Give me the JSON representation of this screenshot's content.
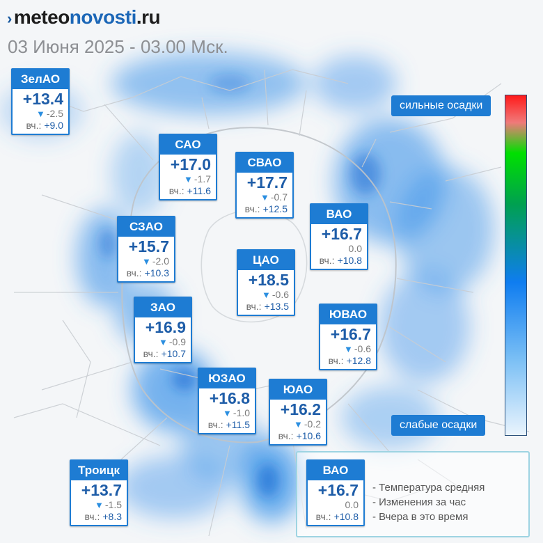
{
  "header": {
    "logo": {
      "prefix": "›",
      "part1": "meteo",
      "part2": "novosti",
      "part3": ".ru"
    },
    "datetime": "03 Июня 2025 - 03.00 Мск."
  },
  "labels": {
    "yesterday": "вч.:"
  },
  "districts": [
    {
      "id": "zelao",
      "name": "ЗелАО",
      "temp": "+13.4",
      "change": "-2.5",
      "yesterday": "+9.0"
    },
    {
      "id": "sao",
      "name": "САО",
      "temp": "+17.0",
      "change": "-1.7",
      "yesterday": "+11.6"
    },
    {
      "id": "svao",
      "name": "СВАО",
      "temp": "+17.7",
      "change": "-0.7",
      "yesterday": "+12.5"
    },
    {
      "id": "vao",
      "name": "ВАО",
      "temp": "+16.7",
      "change": "0.0",
      "yesterday": "+10.8"
    },
    {
      "id": "szao",
      "name": "СЗАО",
      "temp": "+15.7",
      "change": "-2.0",
      "yesterday": "+10.3"
    },
    {
      "id": "cao",
      "name": "ЦАО",
      "temp": "+18.5",
      "change": "-0.6",
      "yesterday": "+13.5"
    },
    {
      "id": "zao",
      "name": "ЗАО",
      "temp": "+16.9",
      "change": "-0.9",
      "yesterday": "+10.7"
    },
    {
      "id": "yuvao",
      "name": "ЮВАО",
      "temp": "+16.7",
      "change": "-0.6",
      "yesterday": "+12.8"
    },
    {
      "id": "yuzao",
      "name": "ЮЗАО",
      "temp": "+16.8",
      "change": "-1.0",
      "yesterday": "+11.5"
    },
    {
      "id": "yuao",
      "name": "ЮАО",
      "temp": "+16.2",
      "change": "-0.2",
      "yesterday": "+10.6"
    },
    {
      "id": "troitsk",
      "name": "Троицк",
      "temp": "+13.7",
      "change": "-1.5",
      "yesterday": "+8.3"
    }
  ],
  "precip_scale": {
    "strong": "сильные осадки",
    "weak": "слабые осадки",
    "colors": [
      "#ff1a1a",
      "#00e000",
      "#0f7df0",
      "#eaf4fd"
    ]
  },
  "legend": {
    "sample": {
      "name": "ВАО",
      "temp": "+16.7",
      "change": "0.0",
      "yesterday": "+10.8"
    },
    "lines": [
      "- Температура средняя",
      "- Изменения за час",
      "- Вчера в это время"
    ]
  },
  "colors": {
    "accent": "#1e7cd3",
    "temp": "#1e5da8",
    "trend_down": "#2a8ee0"
  }
}
